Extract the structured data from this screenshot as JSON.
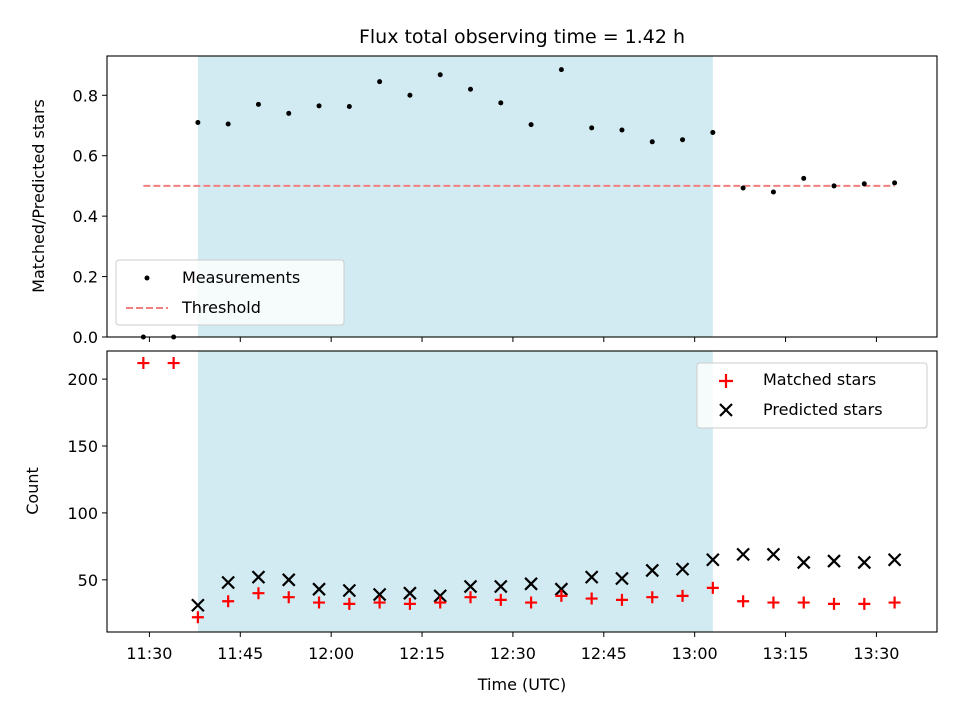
{
  "chart_data": {
    "title": "Flux total observing time = 1.42 h",
    "xlabel": "Time (UTC)",
    "x_tick_labels": [
      "11:30",
      "11:45",
      "12:00",
      "12:15",
      "12:30",
      "12:45",
      "13:00",
      "13:15",
      "13:30"
    ],
    "x_tick_minutes": [
      690,
      705,
      720,
      735,
      750,
      765,
      780,
      795,
      810
    ],
    "xlim": [
      "11:23",
      "13:40"
    ],
    "shaded_region": {
      "start": "11:38",
      "end": "13:03",
      "color": "#add8e6"
    },
    "times": [
      "11:29",
      "11:34",
      "11:38",
      "11:43",
      "11:48",
      "11:53",
      "11:58",
      "12:03",
      "12:08",
      "12:13",
      "12:18",
      "12:23",
      "12:28",
      "12:33",
      "12:38",
      "12:43",
      "12:48",
      "12:53",
      "12:58",
      "13:03",
      "13:08",
      "13:13",
      "13:18",
      "13:23",
      "13:28",
      "13:33"
    ],
    "top": {
      "type": "scatter",
      "ylabel": "Matched/Predicted stars",
      "ylim": [
        0,
        0.93
      ],
      "y_ticks": [
        "0.0",
        "0.2",
        "0.4",
        "0.6",
        "0.8"
      ],
      "series": [
        {
          "name": "Measurements",
          "color": "#000000",
          "values": [
            0.0,
            0.0,
            0.71,
            0.705,
            0.77,
            0.74,
            0.765,
            0.763,
            0.845,
            0.8,
            0.868,
            0.82,
            0.775,
            0.703,
            0.885,
            0.692,
            0.685,
            0.646,
            0.653,
            0.677,
            0.493,
            0.48,
            0.525,
            0.5,
            0.507,
            0.51
          ]
        }
      ],
      "threshold": {
        "name": "Threshold",
        "value": 0.5,
        "color": "#f08080",
        "from": "11:29",
        "to": "13:33"
      },
      "legend_position": "lower-left"
    },
    "bottom": {
      "type": "scatter",
      "ylabel": "Count",
      "ylim": [
        11,
        221
      ],
      "y_ticks": [
        "50",
        "100",
        "150",
        "200"
      ],
      "series": [
        {
          "name": "Matched stars",
          "marker": "+",
          "color": "#ff0000",
          "values": [
            212,
            212,
            22,
            34,
            40,
            37,
            33,
            32,
            33,
            32,
            33,
            37,
            35,
            33,
            38,
            36,
            35,
            37,
            38,
            44,
            34,
            33,
            33,
            32,
            32,
            33
          ]
        },
        {
          "name": "Predicted stars",
          "marker": "x",
          "color": "#000000",
          "values": [
            null,
            null,
            31,
            48,
            52,
            50,
            43,
            42,
            39,
            40,
            38,
            45,
            45,
            47,
            43,
            52,
            51,
            57,
            58,
            65,
            69,
            69,
            63,
            64,
            63,
            65
          ]
        }
      ],
      "legend_position": "top-right"
    }
  }
}
